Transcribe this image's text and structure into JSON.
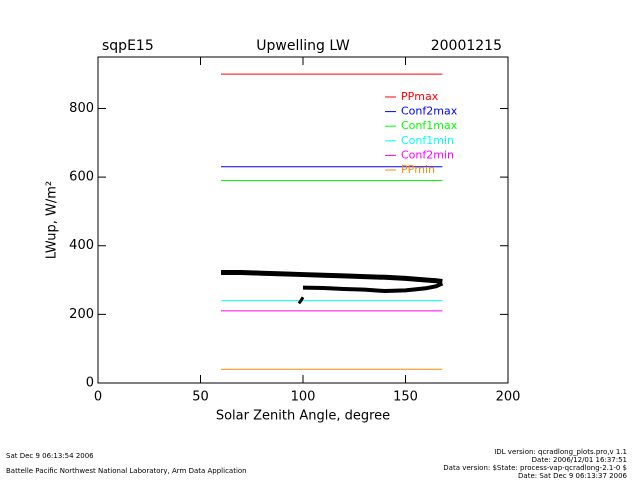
{
  "chart_data": {
    "type": "line",
    "title": "Upwelling LW",
    "site": "sqpE15",
    "date": "20001215",
    "xlabel": "Solar Zenith Angle, degree",
    "ylabel": "LWup, W/m²",
    "xlim": [
      0,
      200
    ],
    "ylim": [
      0,
      950
    ],
    "xticks": [
      0,
      50,
      100,
      150,
      200
    ],
    "yticks": [
      0,
      200,
      400,
      600,
      800
    ],
    "series": [
      {
        "name": "PPmax",
        "color": "#ff0000",
        "x": [
          60,
          168
        ],
        "values": [
          900,
          900
        ]
      },
      {
        "name": "Conf2max",
        "color": "#0000ff",
        "x": [
          60,
          168
        ],
        "values": [
          630,
          630
        ]
      },
      {
        "name": "Conf1max",
        "color": "#00ff00",
        "x": [
          60,
          168
        ],
        "values": [
          590,
          590
        ]
      },
      {
        "name": "Conf1min",
        "color": "#00ffff",
        "x": [
          60,
          168
        ],
        "values": [
          240,
          240
        ]
      },
      {
        "name": "Conf2min",
        "color": "#ff00ff",
        "x": [
          60,
          168
        ],
        "values": [
          210,
          210
        ]
      },
      {
        "name": "PPmin",
        "color": "#ff8c00",
        "x": [
          60,
          168
        ],
        "values": [
          40,
          40
        ]
      },
      {
        "color": "#000000",
        "linewidth": 5,
        "x": [
          60,
          70,
          80,
          90,
          100,
          110,
          120,
          130,
          140,
          150,
          160,
          165,
          168
        ],
        "values": [
          322,
          322,
          320,
          318,
          316,
          314,
          312,
          310,
          308,
          305,
          300,
          298,
          296
        ]
      },
      {
        "color": "#000000",
        "linewidth": 4,
        "x": [
          100,
          110,
          120,
          130,
          140,
          150,
          160,
          165,
          168
        ],
        "values": [
          278,
          277,
          274,
          272,
          268,
          270,
          276,
          282,
          290
        ]
      },
      {
        "color": "#000000",
        "linewidth": 3,
        "x": [
          98,
          99,
          100
        ],
        "values": [
          232,
          240,
          250
        ]
      }
    ],
    "footer_left": [
      "Sat Dec  9 06:13:54 2006",
      "Battelle Pacific Northwest National Laboratory, Arm Data Application"
    ],
    "footer_right": [
      "IDL version: qcradlong_plots.pro,v 1.1",
      "Date: 2006/12/01 16:37:51",
      "Data version: $State: process-vap-qcradlong-2.1-0 $",
      "Date: Sat Dec  9 06:13:37 2006"
    ]
  }
}
